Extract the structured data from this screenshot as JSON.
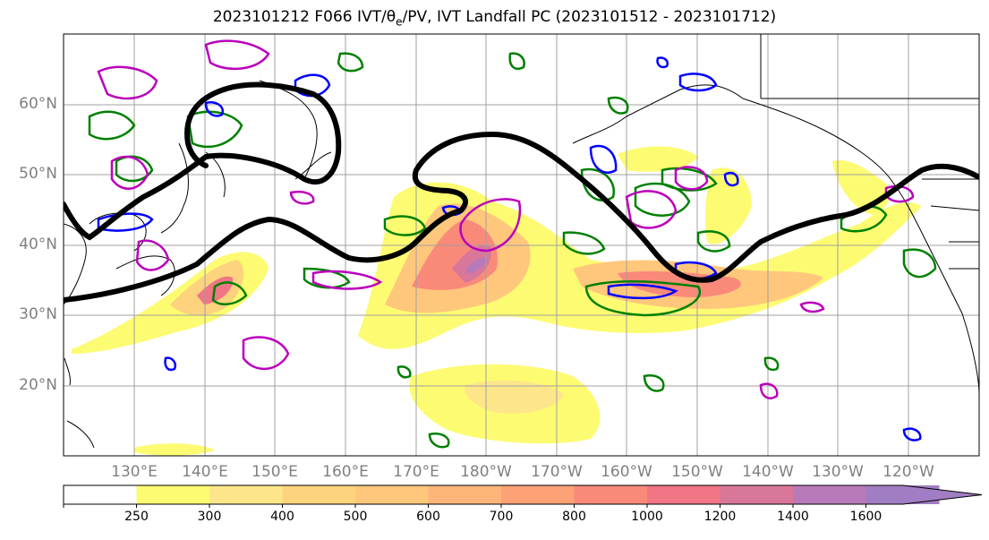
{
  "title": {
    "prefix": "2023101212 F066 IVT/",
    "theta": "θ",
    "theta_sub": "e",
    "suffix": "/PV, IVT Landfall PC (2023101512 - 2023101712)"
  },
  "lat_labels": [
    "60°N",
    "50°N",
    "40°N",
    "30°N",
    "20°N"
  ],
  "lon_labels": [
    "130°E",
    "140°E",
    "150°E",
    "160°E",
    "170°E",
    "180°W",
    "170°W",
    "160°W",
    "150°W",
    "140°W",
    "130°W",
    "120°W"
  ],
  "colorbar": {
    "ticks": [
      "250",
      "300",
      "400",
      "500",
      "600",
      "700",
      "800",
      "1000",
      "1200",
      "1400",
      "1600"
    ],
    "colors": [
      "#ffffff",
      "#fdfb72",
      "#fde68a",
      "#fdd37e",
      "#fec77c",
      "#feb57a",
      "#fca276",
      "#f98a7a",
      "#f07585",
      "#d9779a",
      "#b87ab8",
      "#a17dc3"
    ]
  },
  "colors": {
    "theta_e_contour": "#008000",
    "pv_contour": "#bb00bb",
    "ivt_pc_contour": "#0000ff",
    "jet_line": "#000000",
    "coastline": "#000000"
  }
}
